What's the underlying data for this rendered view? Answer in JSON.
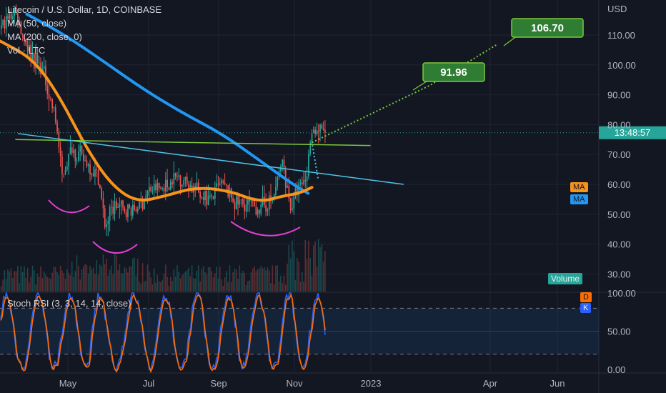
{
  "header": {
    "symbol_title": "Litecoin / U.S. Dollar, 1D, COINBASE",
    "ma50_label": "MA (50, close)",
    "ma200_label": "MA (200, close, 0)",
    "vol_label": "Vol · LTC"
  },
  "oscillator": {
    "title": "Stoch RSI (3, 3, 14, 14, close)"
  },
  "price_axis": {
    "currency": "USD",
    "ticks": [
      "110.00",
      "100.00",
      "90.00",
      "80.00",
      "70.00",
      "60.00",
      "50.00",
      "40.00",
      "30.00"
    ],
    "current_price_countdown": "13:48:57"
  },
  "osc_axis": {
    "ticks": [
      "100.00",
      "50.00",
      "0.00"
    ]
  },
  "time_axis": {
    "labels": [
      "May",
      "Jul",
      "Sep",
      "Nov",
      "2023",
      "Apr",
      "Jun"
    ]
  },
  "tags": {
    "ma_a": "MA",
    "ma_b": "MA",
    "volume": "Volume",
    "stoch_d": "D",
    "stoch_k": "K"
  },
  "colors": {
    "background": "#131722",
    "up_candle": "#26a69a",
    "down_candle": "#ef5350",
    "ma50": "#f7931a",
    "ma200": "#2196f3",
    "green_trend": "#7cc83c",
    "blue_trend": "#4fc3e8",
    "magenta_arc": "#e040d0",
    "target_box": "#2e7d32",
    "stoch_k": "#2962ff",
    "stoch_d": "#ff6d00"
  },
  "chart_data": {
    "type": "candlestick",
    "title": "Litecoin / U.S. Dollar, 1D, COINBASE",
    "ylabel": "USD",
    "ylim": [
      25,
      118
    ],
    "x_labels": [
      "May",
      "Jul",
      "Sep",
      "Nov",
      "2023",
      "Apr",
      "Jun"
    ],
    "price_path": [
      [
        "2022-03-25",
        112
      ],
      [
        "2022-04-05",
        118
      ],
      [
        "2022-04-15",
        106
      ],
      [
        "2022-04-28",
        97
      ],
      [
        "2022-05-08",
        80
      ],
      [
        "2022-05-12",
        62
      ],
      [
        "2022-05-20",
        72
      ],
      [
        "2022-05-30",
        68
      ],
      [
        "2022-06-10",
        62
      ],
      [
        "2022-06-15",
        46
      ],
      [
        "2022-06-22",
        53
      ],
      [
        "2022-07-01",
        51
      ],
      [
        "2022-07-10",
        52
      ],
      [
        "2022-07-20",
        58
      ],
      [
        "2022-08-01",
        59
      ],
      [
        "2022-08-12",
        63
      ],
      [
        "2022-08-25",
        58
      ],
      [
        "2022-09-05",
        55
      ],
      [
        "2022-09-15",
        60
      ],
      [
        "2022-09-25",
        54
      ],
      [
        "2022-10-05",
        53
      ],
      [
        "2022-10-15",
        52
      ],
      [
        "2022-10-25",
        55
      ],
      [
        "2022-11-01",
        68
      ],
      [
        "2022-11-08",
        52
      ],
      [
        "2022-11-14",
        59
      ],
      [
        "2022-11-20",
        62
      ],
      [
        "2022-11-24",
        78
      ]
    ],
    "ma50": [
      [
        "2022-03-25",
        108
      ],
      [
        "2022-04-20",
        102
      ],
      [
        "2022-05-10",
        90
      ],
      [
        "2022-06-01",
        72
      ],
      [
        "2022-06-20",
        60
      ],
      [
        "2022-07-10",
        54
      ],
      [
        "2022-08-01",
        56
      ],
      [
        "2022-08-25",
        59
      ],
      [
        "2022-09-20",
        58
      ],
      [
        "2022-10-15",
        54
      ],
      [
        "2022-11-01",
        56
      ],
      [
        "2022-11-15",
        57
      ],
      [
        "2022-11-25",
        59
      ]
    ],
    "ma200": [
      [
        "2022-04-15",
        117
      ],
      [
        "2022-05-15",
        110
      ],
      [
        "2022-06-15",
        101
      ],
      [
        "2022-07-15",
        92
      ],
      [
        "2022-08-15",
        84
      ],
      [
        "2022-09-15",
        77
      ],
      [
        "2022-10-15",
        68
      ],
      [
        "2022-11-10",
        60
      ],
      [
        "2022-11-22",
        57
      ]
    ],
    "trendlines": [
      {
        "name": "green_neckline",
        "points": [
          [
            "2022-04-06",
            75
          ],
          [
            "2023-01-10",
            73
          ]
        ]
      },
      {
        "name": "blue_downtrend",
        "points": [
          [
            "2022-04-08",
            77
          ],
          [
            "2023-02-05",
            60
          ]
        ]
      }
    ],
    "projection": {
      "points": [
        [
          "2022-11-25",
          74
        ],
        [
          "2023-02-25",
          93
        ],
        [
          "2023-04-20",
          107
        ]
      ]
    },
    "targets": [
      {
        "label": "91.96",
        "value": 91.96
      },
      {
        "label": "106.70",
        "value": 106.7
      }
    ],
    "current_price": 78,
    "stoch_rsi_ticks": [
      100,
      50,
      0
    ]
  }
}
